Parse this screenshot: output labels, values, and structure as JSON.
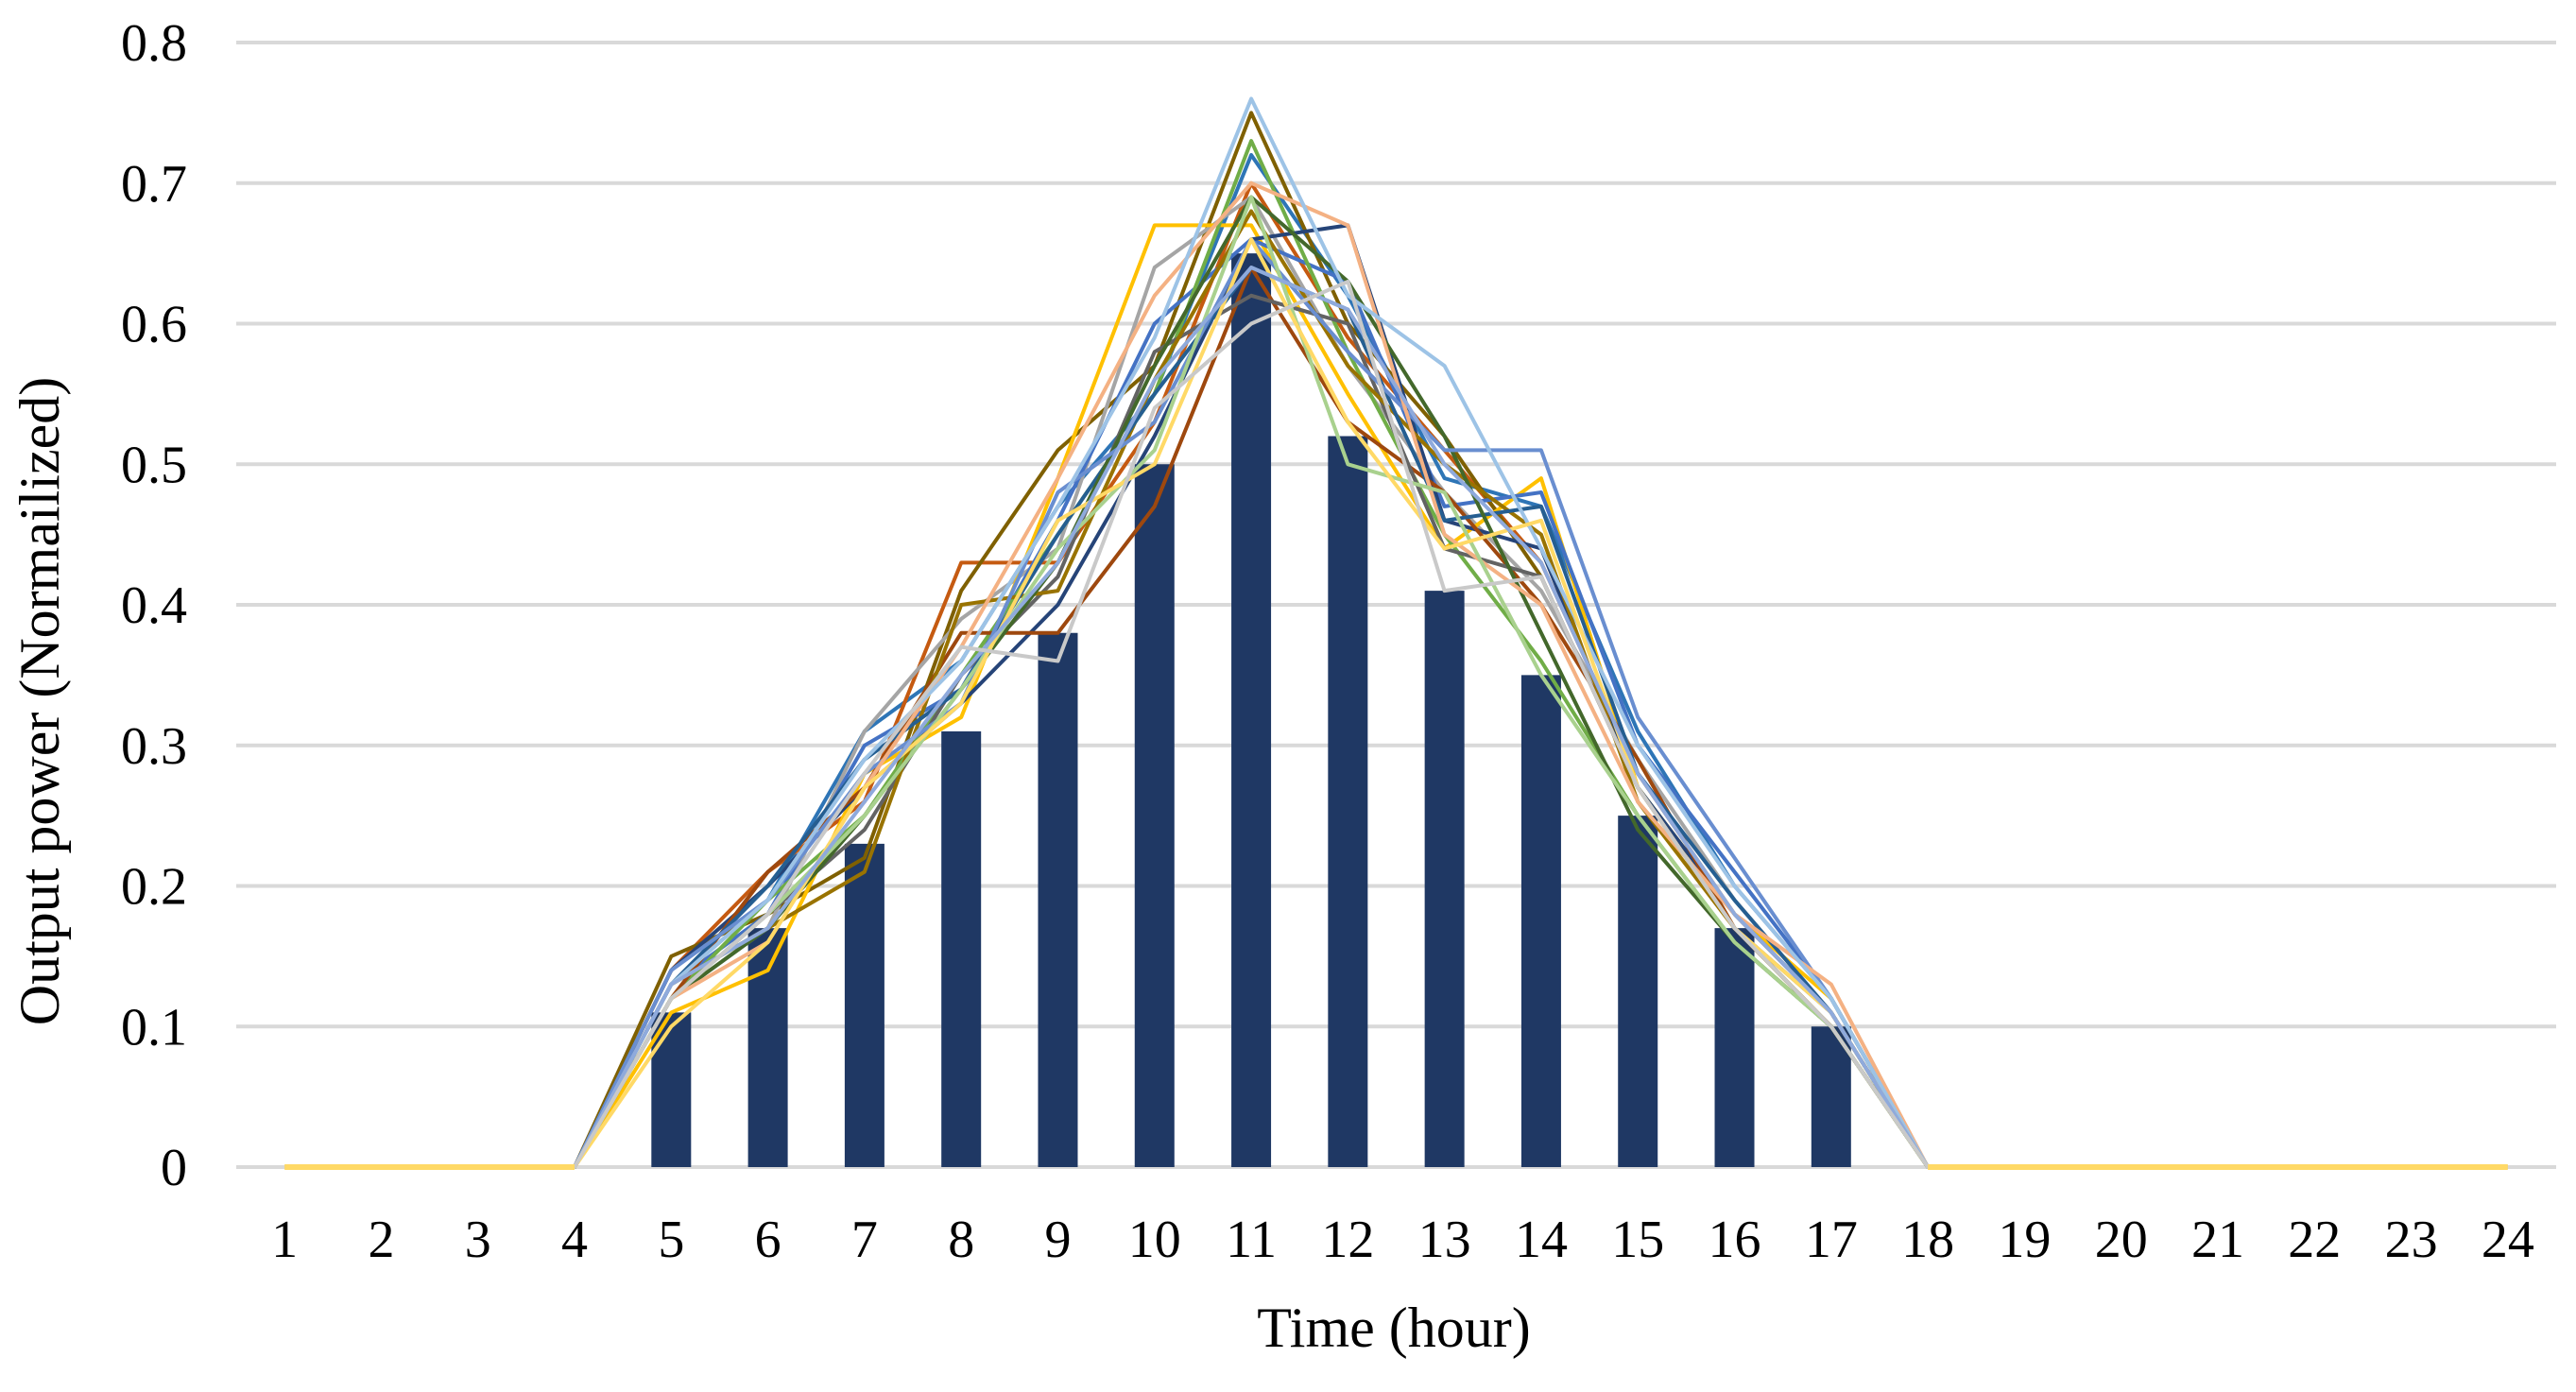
{
  "chart_data": {
    "type": "bar",
    "xlabel": "Time (hour)",
    "ylabel": "Output power (Normailized)",
    "categories": [
      "1",
      "2",
      "3",
      "4",
      "5",
      "6",
      "7",
      "8",
      "9",
      "10",
      "11",
      "12",
      "13",
      "14",
      "15",
      "16",
      "17",
      "18",
      "19",
      "20",
      "21",
      "22",
      "23",
      "24"
    ],
    "ylim": [
      0,
      0.8
    ],
    "yticks": [
      0,
      0.1,
      0.2,
      0.3,
      0.4,
      0.5,
      0.6,
      0.7,
      0.8
    ],
    "ytick_labels": [
      "0",
      "0.1",
      "0.2",
      "0.3",
      "0.4",
      "0.5",
      "0.6",
      "0.7",
      "0.8"
    ],
    "grid": "horizontal",
    "legend": "none",
    "bar_color": "#1F3864",
    "bars": [
      0,
      0,
      0,
      0,
      0.11,
      0.17,
      0.23,
      0.31,
      0.38,
      0.5,
      0.65,
      0.52,
      0.41,
      0.35,
      0.25,
      0.17,
      0.1,
      0,
      0,
      0,
      0,
      0,
      0,
      0
    ],
    "series_colors": [
      "#2E75B6",
      "#C55A11",
      "#7F6000",
      "#A5A5A5",
      "#FFC000",
      "#4472C4",
      "#70AD47",
      "#264478",
      "#9E480E",
      "#636363",
      "#997300",
      "#255E91",
      "#43682B",
      "#698ED0",
      "#F4B183",
      "#9DC3E6",
      "#A9D18E",
      "#FFD966",
      "#8FAADC",
      "#C9C9C9"
    ],
    "series": [
      {
        "values": [
          0,
          0,
          0,
          0,
          0.13,
          0.19,
          0.31,
          0.36,
          0.47,
          0.55,
          0.72,
          0.62,
          0.49,
          0.47,
          0.31,
          0.2,
          0.12,
          0,
          0,
          0,
          0,
          0,
          0,
          0
        ]
      },
      {
        "values": [
          0,
          0,
          0,
          0,
          0.14,
          0.21,
          0.26,
          0.43,
          0.43,
          0.53,
          0.7,
          0.59,
          0.51,
          0.43,
          0.28,
          0.18,
          0.11,
          0,
          0,
          0,
          0,
          0,
          0,
          0
        ]
      },
      {
        "values": [
          0,
          0,
          0,
          0,
          0.15,
          0.18,
          0.22,
          0.41,
          0.51,
          0.57,
          0.75,
          0.6,
          0.52,
          0.42,
          0.27,
          0.17,
          0.1,
          0,
          0,
          0,
          0,
          0,
          0,
          0
        ]
      },
      {
        "values": [
          0,
          0,
          0,
          0,
          0.12,
          0.17,
          0.31,
          0.39,
          0.44,
          0.64,
          0.69,
          0.57,
          0.48,
          0.41,
          0.29,
          0.19,
          0.11,
          0,
          0,
          0,
          0,
          0,
          0,
          0
        ]
      },
      {
        "values": [
          0,
          0,
          0,
          0,
          0.11,
          0.14,
          0.28,
          0.32,
          0.49,
          0.67,
          0.67,
          0.55,
          0.44,
          0.49,
          0.27,
          0.18,
          0.12,
          0,
          0,
          0,
          0,
          0,
          0,
          0
        ]
      },
      {
        "values": [
          0,
          0,
          0,
          0,
          0.13,
          0.18,
          0.3,
          0.34,
          0.46,
          0.6,
          0.66,
          0.63,
          0.47,
          0.48,
          0.3,
          0.21,
          0.12,
          0,
          0,
          0,
          0,
          0,
          0,
          0
        ]
      },
      {
        "values": [
          0,
          0,
          0,
          0,
          0.12,
          0.19,
          0.25,
          0.35,
          0.45,
          0.55,
          0.73,
          0.58,
          0.45,
          0.36,
          0.25,
          0.16,
          0.1,
          0,
          0,
          0,
          0,
          0,
          0,
          0
        ]
      },
      {
        "values": [
          0,
          0,
          0,
          0,
          0.14,
          0.2,
          0.27,
          0.33,
          0.4,
          0.52,
          0.66,
          0.67,
          0.46,
          0.44,
          0.27,
          0.18,
          0.11,
          0,
          0,
          0,
          0,
          0,
          0,
          0
        ]
      },
      {
        "values": [
          0,
          0,
          0,
          0,
          0.12,
          0.21,
          0.27,
          0.38,
          0.38,
          0.47,
          0.64,
          0.53,
          0.48,
          0.4,
          0.29,
          0.17,
          0.1,
          0,
          0,
          0,
          0,
          0,
          0,
          0
        ]
      },
      {
        "values": [
          0,
          0,
          0,
          0,
          0.12,
          0.18,
          0.24,
          0.35,
          0.42,
          0.58,
          0.62,
          0.6,
          0.44,
          0.42,
          0.27,
          0.17,
          0.11,
          0,
          0,
          0,
          0,
          0,
          0,
          0
        ]
      },
      {
        "values": [
          0,
          0,
          0,
          0,
          0.13,
          0.17,
          0.21,
          0.4,
          0.41,
          0.56,
          0.68,
          0.57,
          0.5,
          0.45,
          0.26,
          0.17,
          0.1,
          0,
          0,
          0,
          0,
          0,
          0,
          0
        ]
      },
      {
        "values": [
          0,
          0,
          0,
          0,
          0.13,
          0.2,
          0.29,
          0.34,
          0.45,
          0.55,
          0.64,
          0.61,
          0.46,
          0.47,
          0.28,
          0.19,
          0.11,
          0,
          0,
          0,
          0,
          0,
          0,
          0
        ]
      },
      {
        "values": [
          0,
          0,
          0,
          0,
          0.12,
          0.17,
          0.25,
          0.34,
          0.43,
          0.57,
          0.69,
          0.63,
          0.52,
          0.38,
          0.24,
          0.16,
          0.1,
          0,
          0,
          0,
          0,
          0,
          0,
          0
        ]
      },
      {
        "values": [
          0,
          0,
          0,
          0,
          0.14,
          0.19,
          0.28,
          0.33,
          0.48,
          0.53,
          0.66,
          0.58,
          0.51,
          0.51,
          0.32,
          0.22,
          0.12,
          0,
          0,
          0,
          0,
          0,
          0,
          0
        ]
      },
      {
        "values": [
          0,
          0,
          0,
          0,
          0.12,
          0.16,
          0.27,
          0.37,
          0.49,
          0.62,
          0.7,
          0.67,
          0.45,
          0.4,
          0.26,
          0.18,
          0.13,
          0,
          0,
          0,
          0,
          0,
          0,
          0
        ]
      },
      {
        "values": [
          0,
          0,
          0,
          0,
          0.13,
          0.19,
          0.29,
          0.36,
          0.47,
          0.59,
          0.76,
          0.62,
          0.57,
          0.44,
          0.3,
          0.2,
          0.12,
          0,
          0,
          0,
          0,
          0,
          0,
          0
        ]
      },
      {
        "values": [
          0,
          0,
          0,
          0,
          0.12,
          0.18,
          0.25,
          0.34,
          0.44,
          0.51,
          0.69,
          0.5,
          0.48,
          0.35,
          0.25,
          0.16,
          0.1,
          0,
          0,
          0,
          0,
          0,
          0,
          0
        ]
      },
      {
        "values": [
          0,
          0,
          0,
          0,
          0.1,
          0.16,
          0.27,
          0.33,
          0.46,
          0.5,
          0.66,
          0.53,
          0.44,
          0.46,
          0.27,
          0.17,
          0.11,
          0,
          0,
          0,
          0,
          0,
          0,
          0
        ]
      },
      {
        "values": [
          0,
          0,
          0,
          0,
          0.13,
          0.17,
          0.26,
          0.35,
          0.43,
          0.56,
          0.64,
          0.61,
          0.5,
          0.43,
          0.28,
          0.18,
          0.11,
          0,
          0,
          0,
          0,
          0,
          0,
          0
        ]
      },
      {
        "values": [
          0,
          0,
          0,
          0,
          0.12,
          0.18,
          0.28,
          0.37,
          0.36,
          0.54,
          0.6,
          0.63,
          0.41,
          0.42,
          0.27,
          0.17,
          0.1,
          0,
          0,
          0,
          0,
          0,
          0,
          0
        ]
      }
    ]
  }
}
